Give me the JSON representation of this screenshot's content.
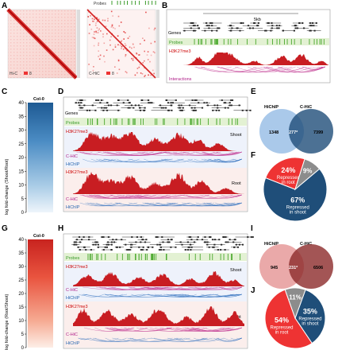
{
  "panels": {
    "A": {
      "letter": "A",
      "left_label": "Hi-C",
      "right_label": "C-HiC",
      "left_multiplier": "8",
      "right_multiplier": "8",
      "probes_label": "Probes"
    },
    "B": {
      "letter": "B",
      "scale": "5kb",
      "genes": "Genes",
      "probes": "Probes",
      "mark": "H3K27me3",
      "interactions": "Interactions"
    },
    "C": {
      "letter": "C",
      "title": "Col-0",
      "ylabel": "log fold-change (Shoot/Root)",
      "ticks": [
        "40",
        "35",
        "30",
        "25",
        "20",
        "15",
        "10",
        "5",
        "0"
      ]
    },
    "D": {
      "letter": "D",
      "genes": "Genes",
      "probes": "Probes",
      "mark1": "H3K27me3",
      "tissue1": "Shoot",
      "chic1": "C-HiC",
      "hichip1": "HiChIP",
      "mark2": "H3K27me3",
      "tissue2": "Root",
      "chic2": "C-HiC",
      "hichip2": "HiChIP"
    },
    "E": {
      "letter": "E",
      "left": "HiChIP",
      "right": "C-HiC",
      "only_left": "1348",
      "overlap": "277*",
      "only_right": "7399"
    },
    "F": {
      "letter": "F",
      "slices": [
        {
          "value": 67,
          "label_pct": "67%",
          "label_text": "Repressed in shoot",
          "color": "#1f4e79"
        },
        {
          "value": 24,
          "label_pct": "24%",
          "label_text": "Repressed in root",
          "color": "#ee3333"
        },
        {
          "value": 9,
          "label_pct": "9%",
          "label_text": "",
          "color": "#8c8c8c"
        }
      ]
    },
    "G": {
      "letter": "G",
      "title": "Col-0",
      "ylabel": "log fold-change (Root/Shoot)",
      "ticks": [
        "40",
        "35",
        "30",
        "25",
        "20",
        "15",
        "10",
        "5",
        "0"
      ]
    },
    "H": {
      "letter": "H",
      "probes": "Probes",
      "mark1": "H3K27me3",
      "tissue1": "Shoot",
      "chic1": "C-HiC",
      "hichip1": "HiChIP",
      "mark2": "H3K27me3",
      "tissue2": "Root",
      "chic2": "C-HiC",
      "hichip2": "HiChIP"
    },
    "I": {
      "letter": "I",
      "left": "HiChIP",
      "right": "C-HiC",
      "only_left": "945",
      "overlap": "231*",
      "only_right": "6506"
    },
    "J": {
      "letter": "J",
      "slices": [
        {
          "value": 35,
          "label_pct": "35%",
          "label_text": "Repressed in shoot",
          "color": "#1f4e79"
        },
        {
          "value": 54,
          "label_pct": "54%",
          "label_text": "Repressed in root",
          "color": "#ee3333"
        },
        {
          "value": 11,
          "label_pct": "11%",
          "label_text": "",
          "color": "#8c8c8c"
        }
      ]
    }
  }
}
